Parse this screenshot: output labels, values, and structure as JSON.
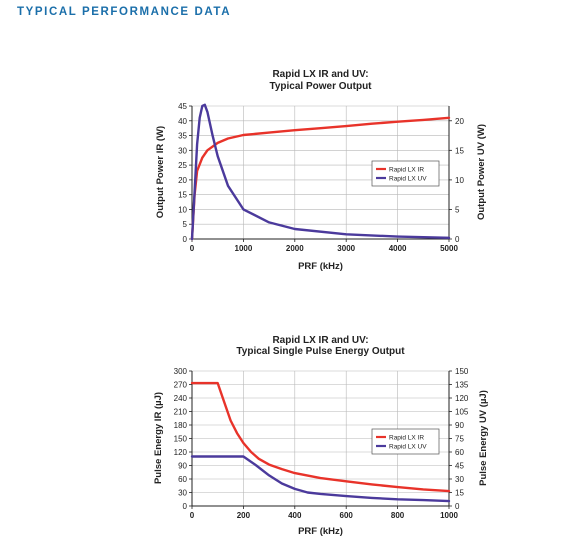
{
  "page": {
    "title": "TYPICAL PERFORMANCE DATA",
    "title_color": "#1b6faa"
  },
  "chart_data": [
    {
      "type": "line",
      "title": "Rapid LX IR and UV:",
      "subtitle": "Typical Power Output",
      "xlabel": "PRF (kHz)",
      "ylabel_left": "Output Power IR (W)",
      "ylabel_right": "Output Power UV (W)",
      "xlim": [
        0,
        5000
      ],
      "ylim_left": [
        0,
        45
      ],
      "ylim_right": [
        0,
        22.5
      ],
      "x_ticks": [
        0,
        1000,
        2000,
        3000,
        4000,
        5000
      ],
      "y_ticks_left": [
        0,
        5,
        10,
        15,
        20,
        25,
        30,
        35,
        40,
        45
      ],
      "y_ticks_right": [
        0,
        5,
        10,
        15,
        20
      ],
      "grid": true,
      "legend_position": "right",
      "series": [
        {
          "name": "Rapid LX IR",
          "axis": "left",
          "color": "#e8332a",
          "x": [
            0,
            50,
            100,
            200,
            300,
            500,
            700,
            1000,
            1500,
            2000,
            2500,
            3000,
            3500,
            4000,
            4500,
            5000
          ],
          "y": [
            0,
            15,
            23,
            27.5,
            30,
            32.5,
            34,
            35.2,
            36,
            36.8,
            37.5,
            38.2,
            39,
            39.7,
            40.3,
            41
          ]
        },
        {
          "name": "Rapid LX UV",
          "axis": "right",
          "color": "#4b3a9c",
          "x": [
            0,
            50,
            100,
            150,
            200,
            250,
            300,
            400,
            500,
            700,
            1000,
            1500,
            2000,
            3000,
            4000,
            5000
          ],
          "y": [
            0,
            8,
            16,
            20.5,
            22.5,
            22.7,
            21.5,
            17.5,
            14,
            9,
            5,
            2.8,
            1.7,
            0.8,
            0.4,
            0.2
          ]
        }
      ]
    },
    {
      "type": "line",
      "title": "Rapid LX IR and UV:",
      "subtitle": "Typical Single Pulse Energy Output",
      "xlabel": "PRF (kHz)",
      "ylabel_left": "Pulse Energy IR (µJ)",
      "ylabel_right": "Pulse Energy UV (µJ)",
      "xlim": [
        0,
        1000
      ],
      "ylim_left": [
        0,
        300
      ],
      "ylim_right": [
        0,
        150
      ],
      "x_ticks": [
        0,
        200,
        400,
        600,
        800,
        1000
      ],
      "y_ticks_left": [
        0,
        30,
        60,
        90,
        120,
        150,
        180,
        210,
        240,
        270,
        300
      ],
      "y_ticks_right": [
        0,
        15,
        30,
        45,
        60,
        75,
        90,
        105,
        120,
        135,
        150
      ],
      "grid": true,
      "legend_position": "right",
      "series": [
        {
          "name": "Rapid LX IR",
          "axis": "left",
          "color": "#e8332a",
          "x": [
            0,
            100,
            120,
            150,
            175,
            200,
            230,
            260,
            300,
            350,
            400,
            500,
            600,
            700,
            800,
            900,
            1000
          ],
          "y": [
            273,
            273,
            240,
            190,
            162,
            140,
            120,
            105,
            92,
            82,
            73,
            62,
            55,
            48,
            42,
            37,
            33
          ]
        },
        {
          "name": "Rapid LX UV",
          "axis": "right",
          "color": "#4b3a9c",
          "x": [
            0,
            200,
            250,
            300,
            350,
            400,
            450,
            500,
            600,
            700,
            800,
            900,
            1000
          ],
          "y": [
            55,
            55,
            45,
            34,
            25,
            19,
            15,
            13.5,
            11,
            9,
            7.5,
            6.5,
            5.5
          ]
        }
      ]
    }
  ]
}
